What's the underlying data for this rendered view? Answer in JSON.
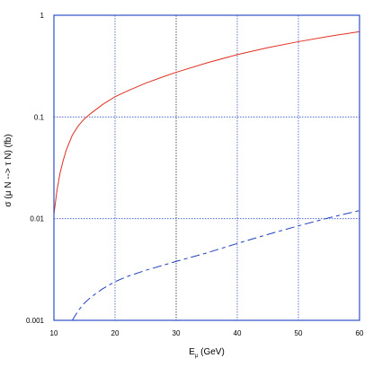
{
  "chart_data": {
    "type": "line",
    "xlabel_main": "E",
    "xlabel_sub": "μ",
    "xlabel_unit": " (GeV)",
    "ylabel": "σ (μ N --> τ N) (fb)",
    "xlim": [
      10,
      60
    ],
    "ylim": [
      0.001,
      1
    ],
    "yscale": "log",
    "grid": true,
    "x_ticks": [
      10,
      20,
      30,
      40,
      50,
      60
    ],
    "x_tick_labels": [
      "10",
      "20",
      "30",
      "40",
      "50",
      "60"
    ],
    "y_ticks": [
      0.001,
      0.01,
      0.1,
      1
    ],
    "y_tick_labels": [
      "0.001",
      "0.01",
      "0.1",
      "1"
    ],
    "colors": {
      "frame": "#3050c8",
      "grid": "#3050c8",
      "grid_center": "#202850",
      "red_series": "#e03020",
      "blue_series": "#2040c0"
    },
    "series": [
      {
        "style": "solid",
        "color": "#e03020",
        "x": [
          10,
          10.5,
          11,
          11.5,
          12,
          13,
          14,
          15,
          16,
          18,
          20,
          22,
          25,
          28,
          30,
          35,
          40,
          45,
          50,
          55,
          60
        ],
        "y": [
          0.011,
          0.019,
          0.028,
          0.037,
          0.047,
          0.066,
          0.082,
          0.096,
          0.108,
          0.133,
          0.158,
          0.18,
          0.215,
          0.25,
          0.275,
          0.34,
          0.41,
          0.48,
          0.55,
          0.62,
          0.69
        ]
      },
      {
        "style": "dashed",
        "color": "#2040c0",
        "x": [
          13,
          14,
          15,
          16,
          18,
          20,
          22,
          25,
          28,
          30,
          35,
          40,
          45,
          50,
          55,
          60
        ],
        "y": [
          0.001,
          0.00125,
          0.00148,
          0.00168,
          0.00205,
          0.0024,
          0.0027,
          0.0031,
          0.0035,
          0.0038,
          0.0046,
          0.0057,
          0.007,
          0.0085,
          0.0102,
          0.012
        ]
      }
    ]
  }
}
